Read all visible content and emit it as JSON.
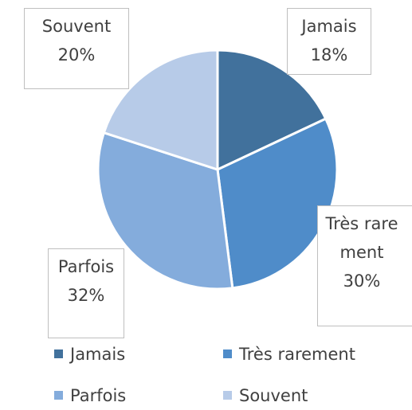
{
  "chart_data": {
    "type": "pie",
    "categories": [
      "Jamais",
      "Très rarement",
      "Parfois",
      "Souvent"
    ],
    "values": [
      18,
      30,
      32,
      20
    ],
    "value_labels": [
      "18%",
      "30%",
      "32%",
      "20%"
    ],
    "colors": [
      "#41719c",
      "#4f8cc9",
      "#84acdc",
      "#b7cbe8"
    ],
    "legend": "bottom"
  }
}
